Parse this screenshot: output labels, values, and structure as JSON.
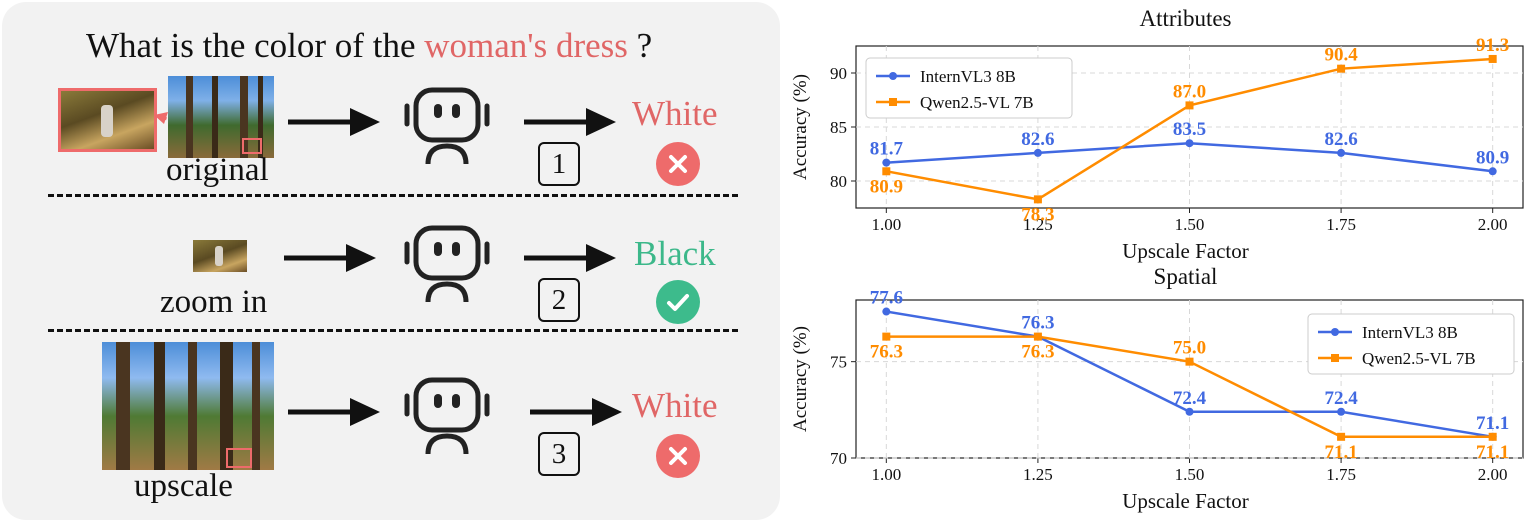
{
  "panel": {
    "question": {
      "prefix": "What is the color of the ",
      "highlight": "woman's dress",
      "suffix": " ?"
    },
    "rows": [
      {
        "caption": "original",
        "step": "1",
        "answer": "White",
        "status": "incorrect"
      },
      {
        "caption": "zoom in",
        "step": "2",
        "answer": "Black",
        "status": "correct"
      },
      {
        "caption": "upscale",
        "step": "3",
        "answer": "White",
        "status": "incorrect"
      }
    ],
    "colors": {
      "wrong": "#e06666",
      "right": "#3cb88a",
      "background": "#f2f2f2"
    },
    "icons": [
      "robot-icon",
      "arrow-right-icon",
      "cross-icon",
      "check-icon"
    ]
  },
  "chart_data": [
    {
      "type": "line",
      "title": "Attributes",
      "xlabel": "Upscale Factor",
      "ylabel": "Accuracy (%)",
      "x": [
        1.0,
        1.25,
        1.5,
        1.75,
        2.0
      ],
      "x_ticks": [
        "1.00",
        "1.25",
        "1.50",
        "1.75",
        "2.00"
      ],
      "y_ticks": [
        "80",
        "85",
        "90"
      ],
      "ylim": [
        77.5,
        92.5
      ],
      "grid": true,
      "legend": "top-left",
      "series": [
        {
          "name": "InternVL3 8B",
          "values": [
            81.7,
            82.6,
            83.5,
            82.6,
            80.9
          ],
          "labels": [
            "81.7",
            "82.6",
            "83.5",
            "82.6",
            "80.9"
          ],
          "color": "#4169e1",
          "marker": "circle"
        },
        {
          "name": "Qwen2.5-VL 7B",
          "values": [
            80.9,
            78.3,
            87.0,
            90.4,
            91.3
          ],
          "labels": [
            "80.9",
            "78.3",
            "87.0",
            "90.4",
            "91.3"
          ],
          "color": "#ff8c00",
          "marker": "square"
        }
      ]
    },
    {
      "type": "line",
      "title": "Spatial",
      "xlabel": "Upscale Factor",
      "ylabel": "Accuracy (%)",
      "x": [
        1.0,
        1.25,
        1.5,
        1.75,
        2.0
      ],
      "x_ticks": [
        "1.00",
        "1.25",
        "1.50",
        "1.75",
        "2.00"
      ],
      "y_ticks": [
        "70",
        "75"
      ],
      "ylim": [
        70.0,
        78.2
      ],
      "grid": true,
      "legend": "top-right",
      "series": [
        {
          "name": "InternVL3 8B",
          "values": [
            77.6,
            76.3,
            72.4,
            72.4,
            71.1
          ],
          "labels": [
            "77.6",
            "76.3",
            "72.4",
            "72.4",
            "71.1"
          ],
          "color": "#4169e1",
          "marker": "circle"
        },
        {
          "name": "Qwen2.5-VL 7B",
          "values": [
            76.3,
            76.3,
            75.0,
            71.1,
            71.1
          ],
          "labels": [
            "76.3",
            "76.3",
            "75.0",
            "71.1",
            "71.1"
          ],
          "color": "#ff8c00",
          "marker": "square"
        }
      ]
    }
  ]
}
